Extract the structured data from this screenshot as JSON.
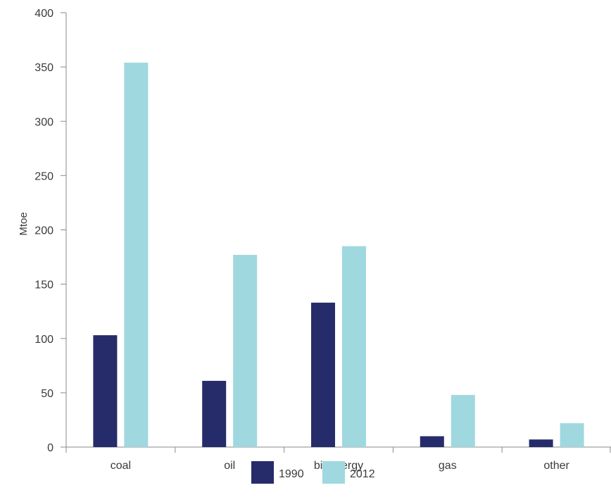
{
  "chart_data": {
    "type": "bar",
    "title": "",
    "xlabel": "",
    "ylabel": "Mtoe",
    "ylim": [
      0,
      400
    ],
    "yticks": [
      0,
      50,
      100,
      150,
      200,
      250,
      300,
      350,
      400
    ],
    "categories": [
      "coal",
      "oil",
      "bioenergy",
      "gas",
      "other"
    ],
    "series": [
      {
        "name": "1990",
        "color": "#262b6a",
        "values": [
          103,
          61,
          133,
          10,
          7
        ]
      },
      {
        "name": "2012",
        "color": "#9fd9df",
        "values": [
          354,
          177,
          185,
          48,
          22
        ]
      }
    ],
    "grid": false,
    "legend": "bottom"
  }
}
